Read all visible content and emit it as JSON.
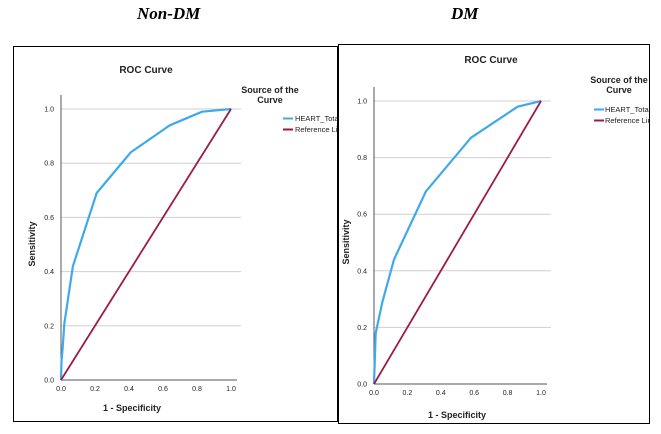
{
  "headings": {
    "left": "Non-DM",
    "right": "DM"
  },
  "colors": {
    "roc": "#3fa9ec",
    "reference": "#9b1b4a",
    "grid": "#cfcfcf",
    "axis": "#555555"
  },
  "chart_data": [
    {
      "type": "line",
      "title": "ROC Curve",
      "xlabel": "1 - Specificity",
      "ylabel": "Sensitivity",
      "xlim": [
        0,
        1
      ],
      "ylim": [
        0,
        1
      ],
      "x_ticks": [
        "0.0",
        "0.2",
        "0.4",
        "0.6",
        "0.8",
        "1.0"
      ],
      "y_ticks": [
        "0.0",
        "0.2",
        "0.4",
        "0.6",
        "0.8",
        "1.0"
      ],
      "grid": true,
      "legend_title": [
        "Source of the",
        "Curve"
      ],
      "legend_position": "top-right",
      "series": [
        {
          "name": "HEART_Total",
          "color": "#3fa9ec",
          "x": [
            0.0,
            0.003,
            0.01,
            0.02,
            0.07,
            0.21,
            0.41,
            0.64,
            0.83,
            1.0
          ],
          "y": [
            0.0,
            0.07,
            0.12,
            0.21,
            0.42,
            0.69,
            0.84,
            0.94,
            0.99,
            1.0
          ]
        },
        {
          "name": "Reference Line",
          "color": "#9b1b4a",
          "x": [
            0.0,
            1.0
          ],
          "y": [
            0.0,
            1.0
          ]
        }
      ]
    },
    {
      "type": "line",
      "title": "ROC Curve",
      "xlabel": "1 - Specificity",
      "ylabel": "Sensitivity",
      "xlim": [
        0,
        1
      ],
      "ylim": [
        0,
        1
      ],
      "x_ticks": [
        "0.0",
        "0.2",
        "0.4",
        "0.6",
        "0.8",
        "1.0"
      ],
      "y_ticks": [
        "0.0",
        "0.2",
        "0.4",
        "0.6",
        "0.8",
        "1.0"
      ],
      "grid": true,
      "legend_title": [
        "Source of the",
        "Curve"
      ],
      "legend_position": "top-right",
      "series": [
        {
          "name": "HEART_Total",
          "color": "#3fa9ec",
          "x": [
            0.0,
            0.01,
            0.05,
            0.12,
            0.31,
            0.58,
            0.86,
            1.0
          ],
          "y": [
            0.0,
            0.18,
            0.29,
            0.44,
            0.68,
            0.87,
            0.98,
            1.0
          ]
        },
        {
          "name": "Reference Line",
          "color": "#9b1b4a",
          "x": [
            0.0,
            1.0
          ],
          "y": [
            0.0,
            1.0
          ]
        }
      ]
    }
  ]
}
